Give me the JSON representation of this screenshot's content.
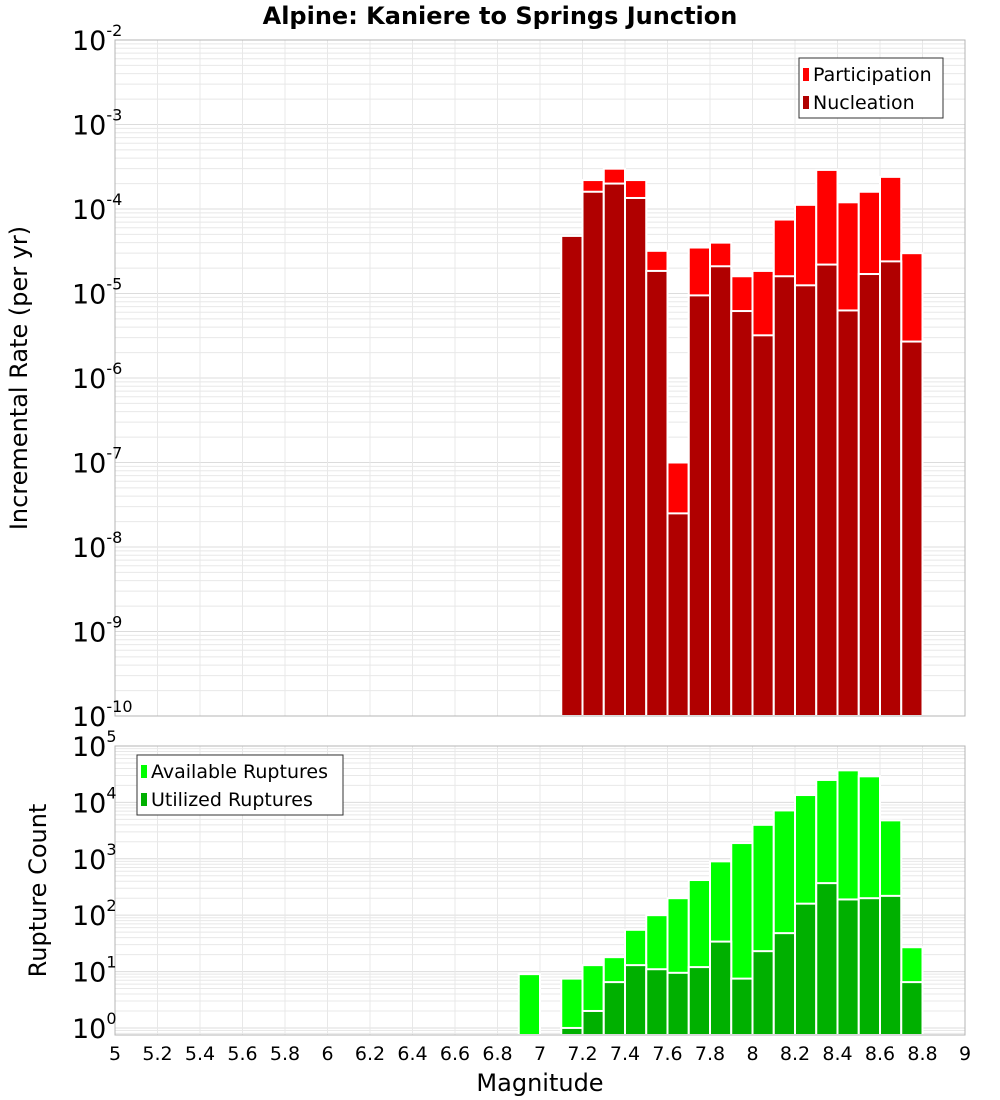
{
  "title": "Alpine: Kaniere to Springs Junction",
  "chart_data": [
    {
      "type": "bar",
      "panel": "top",
      "ylabel": "Incremental Rate (per yr)",
      "yscale": "log",
      "ylim": [
        1e-10,
        0.01
      ],
      "xlim": [
        5,
        9
      ],
      "x": [
        7.15,
        7.25,
        7.35,
        7.45,
        7.55,
        7.65,
        7.75,
        7.85,
        7.95,
        8.05,
        8.15,
        8.25,
        8.35,
        8.45,
        8.55,
        8.65,
        8.75
      ],
      "series": [
        {
          "name": "Participation",
          "color": "#ff0000",
          "values": [
            4.8e-05,
            0.00022,
            0.0003,
            0.00022,
            3.2e-05,
            1e-07,
            3.5e-05,
            4e-05,
            1.6e-05,
            1.85e-05,
            7.5e-05,
            0.000112,
            0.00029,
            0.00012,
            0.00016,
            0.00024,
            3e-05
          ]
        },
        {
          "name": "Nucleation",
          "color": "#b00000",
          "values": [
            4.8e-05,
            0.00016,
            0.0002,
            0.000135,
            1.85e-05,
            2.5e-08,
            9.5e-06,
            2.1e-05,
            6.2e-06,
            3.2e-06,
            1.6e-05,
            1.25e-05,
            2.2e-05,
            6.3e-06,
            1.7e-05,
            2.4e-05,
            2.7e-06
          ]
        }
      ],
      "yticks": {
        "base": "10",
        "exponents": [
          "-10",
          "-9",
          "-8",
          "-7",
          "-6",
          "-5",
          "-4",
          "-3",
          "-2"
        ]
      },
      "legend": "top-right",
      "grid": true
    },
    {
      "type": "bar",
      "panel": "bottom",
      "ylabel": "Rupture Count",
      "xlabel": "Magnitude",
      "yscale": "log",
      "ylim": [
        0.75,
        100000.0
      ],
      "xlim": [
        5,
        9
      ],
      "x": [
        6.95,
        7.15,
        7.25,
        7.35,
        7.45,
        7.55,
        7.65,
        7.75,
        7.85,
        7.95,
        8.05,
        8.15,
        8.25,
        8.35,
        8.45,
        8.55,
        8.65,
        8.75
      ],
      "series": [
        {
          "name": "Available Ruptures",
          "color": "#00ff00",
          "values": [
            9,
            7.5,
            13,
            18,
            55,
            100,
            200,
            420,
            900,
            1900,
            4000,
            7200,
            13500,
            25000,
            37000,
            29000,
            4800,
            27
          ]
        },
        {
          "name": "Utilized Ruptures",
          "color": "#00b000",
          "values": [
            null,
            1,
            2,
            6.5,
            13,
            11,
            9.5,
            12,
            34,
            7.5,
            23,
            48,
            160,
            370,
            190,
            200,
            220,
            6.5
          ]
        }
      ],
      "yticks": {
        "base": "10",
        "exponents": [
          "0",
          "1",
          "2",
          "3",
          "4",
          "5"
        ]
      },
      "legend": "top-left",
      "grid": true
    }
  ],
  "xticks": [
    "5",
    "5.2",
    "5.4",
    "5.6",
    "5.8",
    "6",
    "6.2",
    "6.4",
    "6.6",
    "6.8",
    "7",
    "7.2",
    "7.4",
    "7.6",
    "7.8",
    "8",
    "8.2",
    "8.4",
    "8.6",
    "8.8",
    "9"
  ],
  "colors": {
    "grid": "#e8e8e8",
    "frame": "#b4b4b4",
    "bar_outline": "#ffffff"
  }
}
